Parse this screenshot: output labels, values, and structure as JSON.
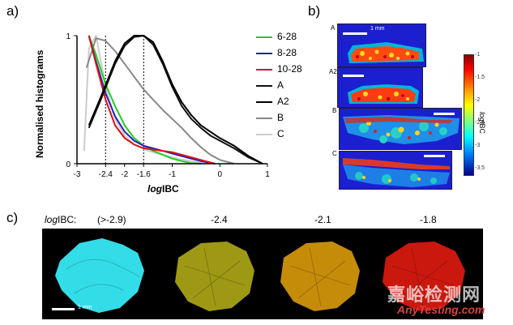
{
  "panel_a": {
    "label": "a)",
    "chart_data": {
      "type": "line",
      "title": "",
      "xlabel_prefix": "log",
      "xlabel_suffix": "IBC",
      "ylabel": "Normalised histograms",
      "xlim": [
        -3,
        1
      ],
      "ylim": [
        0,
        1
      ],
      "x_ticks": [
        "-3",
        "-2.4",
        "-2",
        "-1.6",
        "-1",
        "0",
        "1"
      ],
      "x_tick_values": [
        -3,
        -2.4,
        -2,
        -1.6,
        -1,
        0,
        1
      ],
      "y_ticks": [
        "0",
        "1"
      ],
      "vlines": [
        -2.4,
        -1.6
      ],
      "series": [
        {
          "name": "6-28",
          "color": "#22cc22",
          "x": [
            -2.75,
            -2.6,
            -2.4,
            -2.2,
            -2.0,
            -1.8,
            -1.6,
            -1.4,
            -1.2,
            -1.0,
            -0.8,
            -0.6,
            -0.4
          ],
          "y": [
            1.0,
            0.85,
            0.62,
            0.45,
            0.3,
            0.2,
            0.14,
            0.1,
            0.07,
            0.04,
            0.02,
            0.005,
            0
          ]
        },
        {
          "name": "8-28",
          "color": "#2222bb",
          "x": [
            -2.75,
            -2.6,
            -2.4,
            -2.2,
            -2.0,
            -1.8,
            -1.6,
            -1.4,
            -1.2,
            -1.0,
            -0.7,
            -0.4,
            -0.1
          ],
          "y": [
            1.0,
            0.8,
            0.55,
            0.37,
            0.25,
            0.18,
            0.14,
            0.12,
            0.1,
            0.08,
            0.05,
            0.02,
            0
          ]
        },
        {
          "name": "10-28",
          "color": "#dd1111",
          "x": [
            -2.75,
            -2.6,
            -2.4,
            -2.2,
            -2.0,
            -1.8,
            -1.6,
            -1.4,
            -1.2,
            -1.0,
            -0.7,
            -0.4,
            -0.1
          ],
          "y": [
            1.0,
            0.78,
            0.5,
            0.3,
            0.2,
            0.15,
            0.12,
            0.11,
            0.1,
            0.09,
            0.06,
            0.03,
            0
          ]
        },
        {
          "name": "A",
          "color": "#111111",
          "x": [
            -2.75,
            -2.5,
            -2.2,
            -2.0,
            -1.8,
            -1.6,
            -1.4,
            -1.2,
            -1.0,
            -0.8,
            -0.6,
            -0.4,
            -0.2,
            0.0,
            0.3,
            0.6,
            0.9
          ],
          "y": [
            0.28,
            0.5,
            0.78,
            0.92,
            0.99,
            1.0,
            0.93,
            0.78,
            0.6,
            0.45,
            0.35,
            0.28,
            0.22,
            0.18,
            0.12,
            0.05,
            0
          ]
        },
        {
          "name": "A2",
          "color": "#000000",
          "x": [
            -2.75,
            -2.5,
            -2.2,
            -2.0,
            -1.8,
            -1.6,
            -1.4,
            -1.2,
            -1.0,
            -0.8,
            -0.6,
            -0.4,
            -0.2,
            0.0,
            0.3,
            0.6,
            0.9
          ],
          "y": [
            0.3,
            0.52,
            0.8,
            0.94,
            1.0,
            1.0,
            0.95,
            0.8,
            0.62,
            0.48,
            0.38,
            0.3,
            0.25,
            0.2,
            0.14,
            0.06,
            0
          ]
        },
        {
          "name": "B",
          "color": "#888888",
          "x": [
            -2.8,
            -2.6,
            -2.4,
            -2.2,
            -2.0,
            -1.8,
            -1.6,
            -1.4,
            -1.2,
            -1.0,
            -0.8,
            -0.6,
            -0.4,
            -0.2,
            0.0,
            0.3
          ],
          "y": [
            0.75,
            0.98,
            0.96,
            0.88,
            0.78,
            0.68,
            0.58,
            0.5,
            0.42,
            0.35,
            0.28,
            0.2,
            0.13,
            0.07,
            0.03,
            0
          ]
        },
        {
          "name": "C",
          "color": "#cccccc",
          "x": [
            -2.85,
            -2.75,
            -2.6,
            -2.4,
            -2.2,
            -2.0,
            -1.8,
            -1.5,
            -1.2,
            -0.9,
            -0.6,
            -0.3
          ],
          "y": [
            0.1,
            0.9,
            1.0,
            0.6,
            0.35,
            0.22,
            0.15,
            0.1,
            0.07,
            0.04,
            0.02,
            0
          ]
        }
      ]
    }
  },
  "panel_b": {
    "label": "b)",
    "scale_label": "1 mm",
    "rows": [
      "A",
      "A2",
      "B",
      "C"
    ],
    "colorbar": {
      "title_prefix": "log",
      "title_suffix": "IBC",
      "ticks": [
        "-1",
        "-1.5",
        "-2",
        "-2.5",
        "-3",
        "-3.5"
      ]
    }
  },
  "panel_c": {
    "label": "c)",
    "caption_prefix": "log",
    "caption_suffix": "IBC:",
    "thresholds": [
      "(>-2.9)",
      "-2.4",
      "-2.1",
      "-1.8"
    ],
    "scale_label": "1 mm",
    "colors": [
      "#33dde8",
      "#b8b418",
      "#e8a40c",
      "#ee1c10"
    ]
  },
  "watermark": {
    "chinese": "嘉峪检测网",
    "latin": "AnyTesting.com"
  }
}
